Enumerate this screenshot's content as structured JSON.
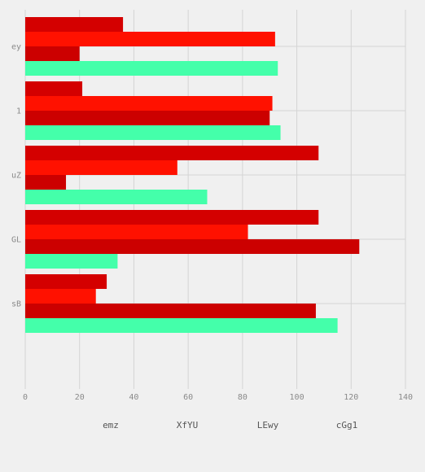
{
  "chart_data": {
    "type": "bar",
    "orientation": "horizontal",
    "categories": [
      "ey",
      "1",
      "uZ",
      "GL",
      "sB"
    ],
    "series": [
      {
        "name": "emz",
        "values": [
          36,
          21,
          108,
          108,
          30
        ],
        "color": "#d40000"
      },
      {
        "name": "XfYU",
        "values": [
          92,
          91,
          56,
          82,
          26
        ],
        "color": "#ff1100"
      },
      {
        "name": "LEwy",
        "values": [
          20,
          90,
          15,
          123,
          107
        ],
        "color": "#cc0000"
      },
      {
        "name": "cGg1",
        "values": [
          93,
          94,
          67,
          34,
          115
        ],
        "color": "#44ffaa"
      }
    ],
    "xlim": [
      0,
      140
    ],
    "xticks": [
      0,
      20,
      40,
      60,
      80,
      100,
      120,
      140
    ],
    "grid": true,
    "legend_position": "bottom",
    "background": "#f0f0f0",
    "grid_color": "#d4d4d4"
  }
}
